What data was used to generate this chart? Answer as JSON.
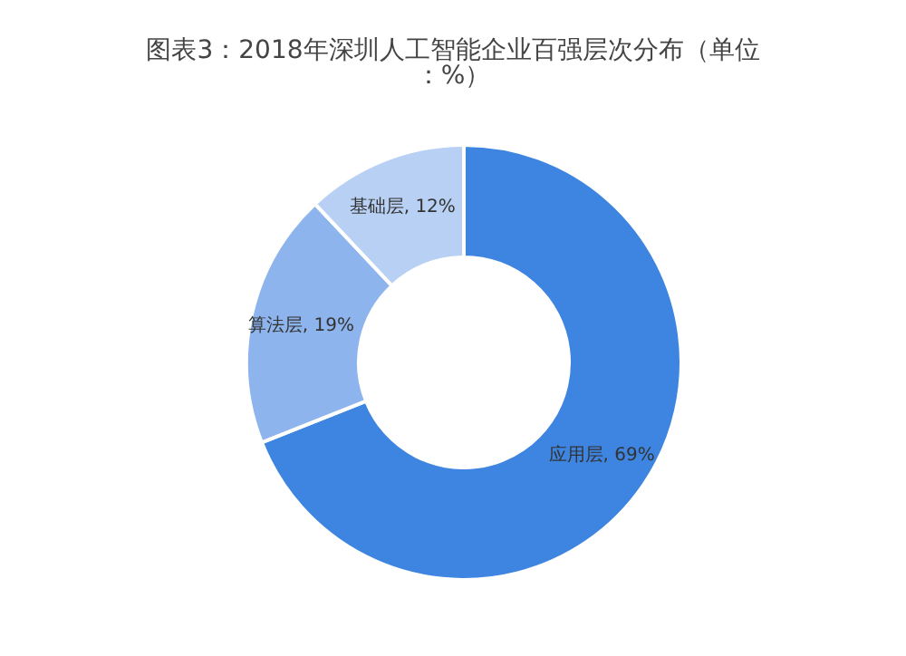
{
  "chart_data": {
    "type": "donut",
    "title": "图表3：2018年深圳人工智能企业百强层次分布（单位：%）",
    "categories": [
      "应用层",
      "算法层",
      "基础层"
    ],
    "values": [
      69,
      19,
      12
    ],
    "colors": [
      "#3d85e0",
      "#8db4ec",
      "#b8d0f3"
    ],
    "value_labels": [
      ", 69%",
      ", 19%",
      ", 12%"
    ],
    "legend": false
  }
}
